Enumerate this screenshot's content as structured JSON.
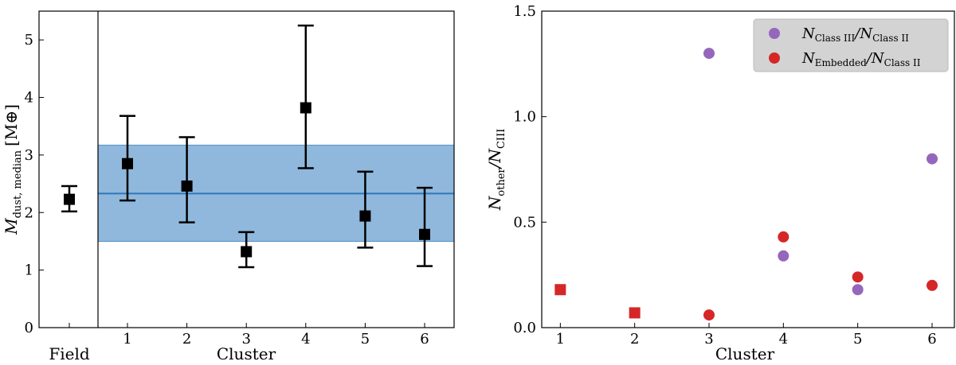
{
  "chart_data": [
    {
      "type": "scatter",
      "title": "",
      "ylabel_main": "M",
      "ylabel_sub": "dust, median",
      "ylabel_unit": "[M⊕]",
      "xlabel_left": "Field",
      "xlabel_right": "Cluster",
      "ylim": [
        0,
        5.5
      ],
      "yticks": [
        "0",
        "1",
        "2",
        "3",
        "4",
        "5"
      ],
      "field_point": {
        "label": "",
        "value": 2.23,
        "err_low": 2.02,
        "err_high": 2.46
      },
      "categories": [
        "1",
        "2",
        "3",
        "4",
        "5",
        "6"
      ],
      "values": [
        2.85,
        2.46,
        1.32,
        3.82,
        1.94,
        1.62
      ],
      "err_low": [
        2.21,
        1.83,
        1.05,
        2.77,
        1.39,
        1.07
      ],
      "err_high": [
        3.68,
        3.31,
        1.66,
        5.25,
        2.71,
        2.43
      ],
      "band": {
        "center": 2.33,
        "low": 1.5,
        "high": 3.17,
        "color": "#8fb8dc",
        "line_color": "#2f77b8"
      },
      "marker_color": "#000000"
    },
    {
      "type": "scatter",
      "title": "",
      "xlabel": "Cluster",
      "ylabel_main": "N",
      "ylabel_sub1": "other",
      "ylabel_mid": "/N",
      "ylabel_sub2": "CIII",
      "xlim": [
        0.75,
        6.3
      ],
      "ylim": [
        0,
        1.5
      ],
      "xticks": [
        "1",
        "2",
        "3",
        "4",
        "5",
        "6"
      ],
      "yticks": [
        "0.0",
        "0.5",
        "1.0",
        "1.5"
      ],
      "series": [
        {
          "name": "N_Class III / N_Class II",
          "legend_main": "N",
          "legend_sub1": "Class III",
          "legend_mid": "/N",
          "legend_sub2": "Class II",
          "color": "#9467bd",
          "marker": "circle",
          "x": [
            3,
            4,
            5,
            6
          ],
          "y": [
            1.3,
            0.34,
            0.18,
            0.8
          ]
        },
        {
          "name": "N_Embedded / N_Class II",
          "legend_main": "N",
          "legend_sub1": "Embedded",
          "legend_mid": "/N",
          "legend_sub2": "Class II",
          "color": "#d62728",
          "marker": "circle",
          "x": [
            3,
            4,
            5,
            6
          ],
          "y": [
            0.06,
            0.43,
            0.24,
            0.2
          ]
        },
        {
          "name": "N_Embedded / N_Class II (lower limits)",
          "color": "#d62728",
          "marker": "square",
          "x": [
            1,
            2
          ],
          "y": [
            0.18,
            0.07
          ]
        }
      ],
      "legend_position": "top-right"
    }
  ]
}
